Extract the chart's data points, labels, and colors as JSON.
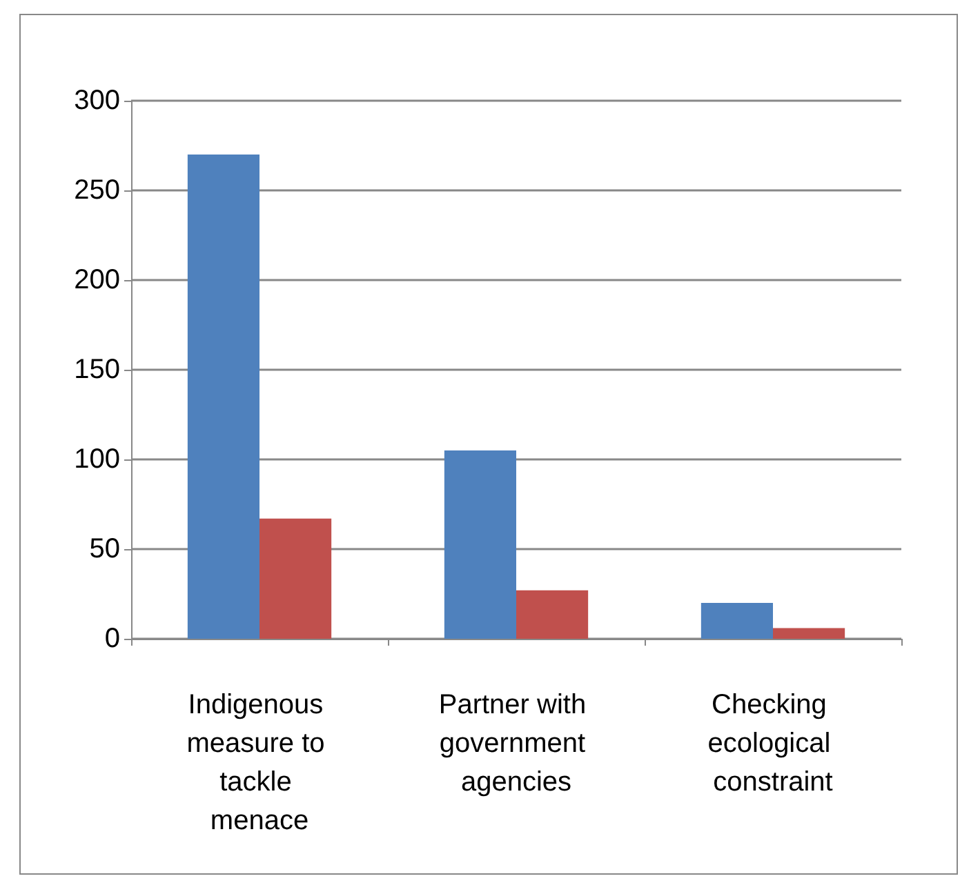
{
  "chart_data": {
    "type": "bar",
    "categories": [
      "Indigenous measure to tackle menace",
      "Partner with government agencies",
      "Checking ecological constraint"
    ],
    "series": [
      {
        "color": "#4f81bd",
        "values": [
          270,
          105,
          20
        ]
      },
      {
        "color": "#c0504d",
        "values": [
          67,
          27,
          6
        ]
      }
    ],
    "ylim": [
      0,
      300
    ],
    "yticks": [
      0,
      50,
      100,
      150,
      200,
      250,
      300
    ],
    "grid": "y"
  }
}
